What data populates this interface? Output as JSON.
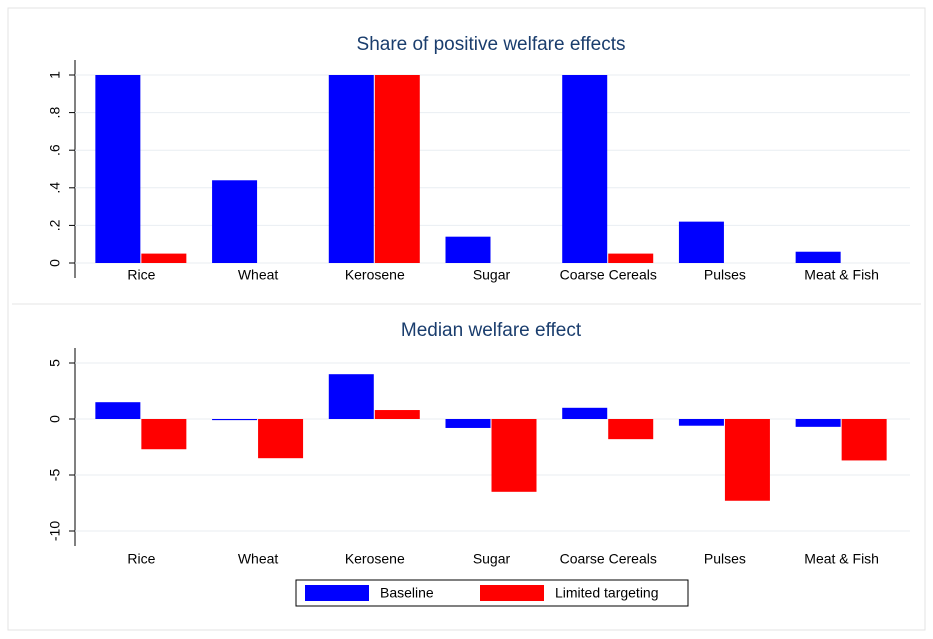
{
  "chart_data": [
    {
      "type": "bar",
      "title": "Share of positive welfare effects",
      "categories": [
        "Rice",
        "Wheat",
        "Kerosene",
        "Sugar",
        "Coarse Cereals",
        "Pulses",
        "Meat & Fish"
      ],
      "series": [
        {
          "color": "#0000ff",
          "values": [
            1,
            0.44,
            1,
            0.14,
            1,
            0.22,
            0.06
          ]
        },
        {
          "color": "#ff0000",
          "values": [
            0.05,
            0,
            1,
            0,
            0.05,
            0,
            0
          ]
        }
      ],
      "ylim": [
        0,
        1
      ],
      "yticks": [
        0,
        {
          "value": 0.2,
          "label": ".2"
        },
        {
          "value": 0.4,
          "label": ".4"
        },
        {
          "value": 0.6,
          "label": ".6"
        },
        {
          "value": 0.8,
          "label": ".8"
        },
        1
      ],
      "grid": true
    },
    {
      "type": "bar",
      "title": "Median welfare effect",
      "categories": [
        "Rice",
        "Wheat",
        "Kerosene",
        "Sugar",
        "Coarse Cereals",
        "Pulses",
        "Meat & Fish"
      ],
      "series": [
        {
          "name": "Baseline",
          "color": "#0000ff",
          "values": [
            1.5,
            -0.1,
            4,
            -0.8,
            1,
            -0.6,
            -0.7
          ]
        },
        {
          "name": "Limited targeting",
          "color": "#ff0000",
          "values": [
            -2.7,
            -3.5,
            0.8,
            -6.5,
            -1.8,
            -7.3,
            -3.7
          ]
        }
      ],
      "ylim": [
        -10,
        5
      ],
      "yticks": [
        -10,
        -5,
        0,
        5
      ],
      "grid": true
    }
  ]
}
